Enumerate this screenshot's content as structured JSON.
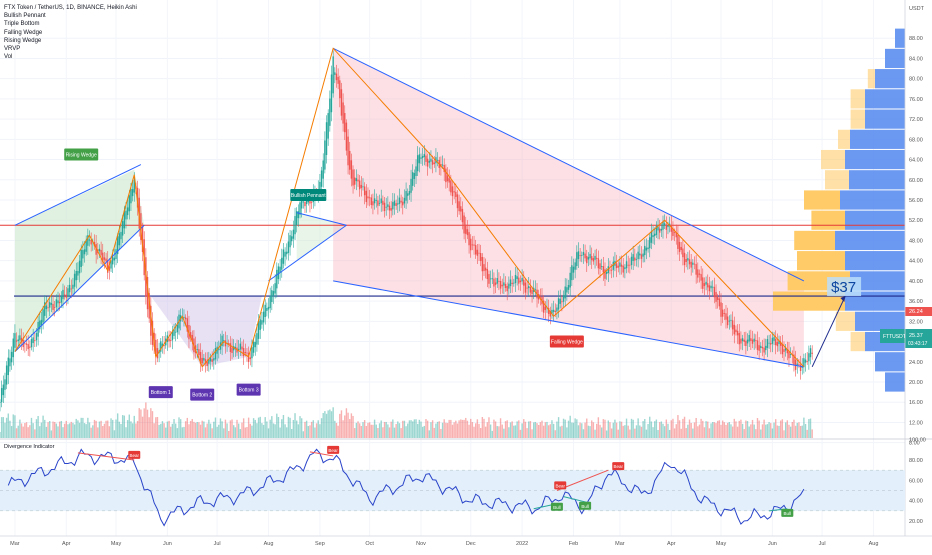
{
  "header": {
    "symbol_line": "FTX Token / TetherUS, 1D, BINANCE, Heikin Ashi",
    "indicators": [
      "Bullish Pennant",
      "Triple Bottom",
      "Falling Wedge",
      "Rising Wedge",
      "VRVP",
      "Vol"
    ]
  },
  "quote_currency": "USDT",
  "price_axis": {
    "ticks": [
      "88.00",
      "84.00",
      "80.00",
      "76.00",
      "72.00",
      "68.00",
      "64.00",
      "60.00",
      "56.00",
      "52.00",
      "48.00",
      "44.00",
      "40.00",
      "36.00",
      "32.00",
      "28.00",
      "24.00",
      "20.00",
      "16.00",
      "12.00",
      "8.00"
    ]
  },
  "price_label": {
    "ticker": "FTTUSDT",
    "upper_value": "26.24",
    "last_value": "25.37",
    "countdown": "03:43:17"
  },
  "time_axis": {
    "ticks": [
      "Mar",
      "Apr",
      "May",
      "Jun",
      "Jul",
      "Aug",
      "Sep",
      "Oct",
      "Nov",
      "Dec",
      "2022",
      "Feb",
      "Mar",
      "Apr",
      "May",
      "Jun",
      "Jul",
      "Aug"
    ]
  },
  "annotations": {
    "target": "$37",
    "patterns": [
      "Rising Wedge",
      "Bullish Pennant",
      "Falling Wedge",
      "Bottom 1",
      "Bottom 2",
      "Bottom 3"
    ],
    "divergence_tags": [
      "Bear",
      "Bear",
      "Bull",
      "Bear",
      "Bull",
      "Bear",
      "Bull"
    ]
  },
  "oscillator": {
    "title": "Divergence Indicator",
    "ticks": [
      "100.00",
      "80.00",
      "60.00",
      "40.00",
      "20.00"
    ]
  },
  "colors": {
    "bull": "#26a69a",
    "bear": "#ef5350",
    "trendline": "#2962ff",
    "zigzag": "#f57c00",
    "support": "#1c2a8c",
    "resistance": "#e53935",
    "wedge_fill": "#f8bbc6",
    "rising_fill": "#c8e6c9",
    "bottom_fill": "#d1c4e9",
    "vp_up": "#5b8def",
    "vp_down": "#ffc861",
    "osc_line": "#2a44c9",
    "osc_band": "#e3f0fb"
  },
  "chart_data": {
    "type": "candlestick",
    "title": "FTX Token / TetherUS, 1D, BINANCE, Heikin Ashi",
    "y_range": [
      8,
      88
    ],
    "y_unit": "USDT",
    "x_range": [
      "2021-02-20",
      "2022-08-20"
    ],
    "price_series": [
      {
        "date": "2021-02-20",
        "value": 16
      },
      {
        "date": "2021-03-01",
        "value": 30
      },
      {
        "date": "2021-03-08",
        "value": 26
      },
      {
        "date": "2021-03-20",
        "value": 35
      },
      {
        "date": "2021-04-01",
        "value": 37
      },
      {
        "date": "2021-04-15",
        "value": 49
      },
      {
        "date": "2021-04-26",
        "value": 42
      },
      {
        "date": "2021-05-05",
        "value": 51
      },
      {
        "date": "2021-05-12",
        "value": 61
      },
      {
        "date": "2021-05-20",
        "value": 34
      },
      {
        "date": "2021-05-25",
        "value": 25
      },
      {
        "date": "2021-06-10",
        "value": 33
      },
      {
        "date": "2021-06-22",
        "value": 23
      },
      {
        "date": "2021-07-05",
        "value": 28
      },
      {
        "date": "2021-07-20",
        "value": 25
      },
      {
        "date": "2021-08-05",
        "value": 40
      },
      {
        "date": "2021-08-20",
        "value": 55
      },
      {
        "date": "2021-09-01",
        "value": 58
      },
      {
        "date": "2021-09-09",
        "value": 84
      },
      {
        "date": "2021-09-20",
        "value": 60
      },
      {
        "date": "2021-10-05",
        "value": 55
      },
      {
        "date": "2021-10-20",
        "value": 55
      },
      {
        "date": "2021-11-01",
        "value": 65
      },
      {
        "date": "2021-11-15",
        "value": 62
      },
      {
        "date": "2021-12-01",
        "value": 47
      },
      {
        "date": "2021-12-15",
        "value": 39
      },
      {
        "date": "2022-01-01",
        "value": 40
      },
      {
        "date": "2022-01-20",
        "value": 33
      },
      {
        "date": "2022-02-05",
        "value": 46
      },
      {
        "date": "2022-02-20",
        "value": 42
      },
      {
        "date": "2022-03-10",
        "value": 44
      },
      {
        "date": "2022-03-28",
        "value": 52
      },
      {
        "date": "2022-04-10",
        "value": 44
      },
      {
        "date": "2022-04-25",
        "value": 38
      },
      {
        "date": "2022-05-10",
        "value": 29
      },
      {
        "date": "2022-05-25",
        "value": 27
      },
      {
        "date": "2022-06-05",
        "value": 28
      },
      {
        "date": "2022-06-15",
        "value": 23
      },
      {
        "date": "2022-06-25",
        "value": 25.37
      }
    ],
    "levels": {
      "resistance": 51,
      "support": 37,
      "target": 37
    },
    "oscillator_series": [
      {
        "date": "2021-02-25",
        "value": 55
      },
      {
        "date": "2021-03-20",
        "value": 70
      },
      {
        "date": "2021-04-10",
        "value": 84
      },
      {
        "date": "2021-05-01",
        "value": 82
      },
      {
        "date": "2021-05-12",
        "value": 78
      },
      {
        "date": "2021-05-28",
        "value": 22
      },
      {
        "date": "2021-06-20",
        "value": 38
      },
      {
        "date": "2021-07-15",
        "value": 45
      },
      {
        "date": "2021-08-15",
        "value": 68
      },
      {
        "date": "2021-08-28",
        "value": 85
      },
      {
        "date": "2021-09-09",
        "value": 82
      },
      {
        "date": "2021-10-01",
        "value": 42
      },
      {
        "date": "2021-11-01",
        "value": 65
      },
      {
        "date": "2021-12-01",
        "value": 40
      },
      {
        "date": "2022-01-10",
        "value": 33
      },
      {
        "date": "2022-01-25",
        "value": 46
      },
      {
        "date": "2022-02-08",
        "value": 33
      },
      {
        "date": "2022-02-22",
        "value": 68
      },
      {
        "date": "2022-03-15",
        "value": 45
      },
      {
        "date": "2022-04-01",
        "value": 79
      },
      {
        "date": "2022-04-20",
        "value": 40
      },
      {
        "date": "2022-05-15",
        "value": 22
      },
      {
        "date": "2022-06-05",
        "value": 30
      },
      {
        "date": "2022-06-20",
        "value": 45
      }
    ],
    "osc_range": [
      0,
      100
    ],
    "osc_band": [
      30,
      70
    ]
  }
}
